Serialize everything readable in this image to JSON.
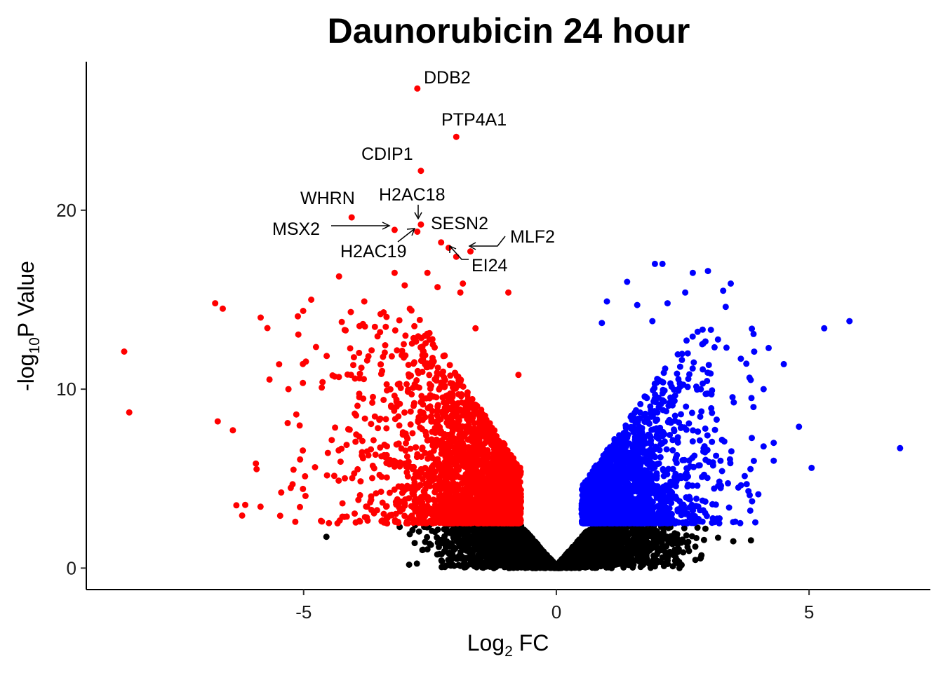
{
  "chart_data": {
    "type": "scatter",
    "title": "Daunorubicin 24 hour",
    "xlabel": {
      "main": "Log",
      "sub": "2",
      "tail": " FC"
    },
    "ylabel": {
      "main": "-log",
      "sub": "10",
      "tail": "P Value"
    },
    "xlim": [
      -9.3,
      7.4
    ],
    "ylim": [
      -1.2,
      28.3
    ],
    "x_ticks": [
      -5,
      0,
      5
    ],
    "y_ticks": [
      0,
      10,
      20
    ],
    "grid": false,
    "legend": "none",
    "colors": {
      "down": "#ff0000",
      "up": "#0000ff",
      "ns": "#000000"
    },
    "significance_threshold": 2.5,
    "point_generation": {
      "down_count": 2400,
      "up_count": 2000,
      "ns_count": 3200,
      "seed": 7
    },
    "highlight_points": {
      "down": [
        [
          -2.75,
          26.8
        ],
        [
          -1.98,
          24.1
        ],
        [
          -2.68,
          22.2
        ],
        [
          -4.05,
          19.6
        ],
        [
          -2.68,
          19.2
        ],
        [
          -3.2,
          18.9
        ],
        [
          -2.75,
          18.8
        ],
        [
          -2.28,
          18.2
        ],
        [
          -2.13,
          17.9
        ],
        [
          -1.7,
          17.7
        ],
        [
          -1.98,
          17.4
        ],
        [
          -8.55,
          12.1
        ],
        [
          -8.45,
          8.7
        ],
        [
          -6.75,
          14.8
        ],
        [
          -6.6,
          14.5
        ],
        [
          -6.7,
          8.2
        ],
        [
          -6.4,
          7.7
        ],
        [
          -5.85,
          14.0
        ],
        [
          -5.3,
          10.0
        ],
        [
          -4.85,
          15.0
        ],
        [
          -4.3,
          16.3
        ],
        [
          -3.2,
          16.5
        ],
        [
          -3.0,
          15.8
        ],
        [
          -2.55,
          16.5
        ],
        [
          -2.35,
          15.7
        ],
        [
          -1.85,
          15.9
        ],
        [
          -1.9,
          15.4
        ],
        [
          -0.95,
          15.4
        ],
        [
          -1.6,
          13.4
        ],
        [
          -0.75,
          10.8
        ],
        [
          -3.8,
          14.9
        ],
        [
          -5.2,
          5.5
        ]
      ],
      "up": [
        [
          1.0,
          14.9
        ],
        [
          1.4,
          16.0
        ],
        [
          1.9,
          13.8
        ],
        [
          1.95,
          17.0
        ],
        [
          2.1,
          17.0
        ],
        [
          2.2,
          14.8
        ],
        [
          2.55,
          15.4
        ],
        [
          2.7,
          16.5
        ],
        [
          3.0,
          16.6
        ],
        [
          3.45,
          15.9
        ],
        [
          3.3,
          15.5
        ],
        [
          3.35,
          14.6
        ],
        [
          4.2,
          12.3
        ],
        [
          4.5,
          11.4
        ],
        [
          5.3,
          13.4
        ],
        [
          5.8,
          13.8
        ],
        [
          6.8,
          6.7
        ],
        [
          5.05,
          5.6
        ],
        [
          4.3,
          6.0
        ],
        [
          3.6,
          4.5
        ],
        [
          3.8,
          4.3
        ],
        [
          4.1,
          6.8
        ],
        [
          4.3,
          7.0
        ],
        [
          4.8,
          7.9
        ],
        [
          3.9,
          9.0
        ],
        [
          3.65,
          11.7
        ],
        [
          4.1,
          10.0
        ],
        [
          0.9,
          13.7
        ],
        [
          1.6,
          14.7
        ],
        [
          2.6,
          12.0
        ]
      ],
      "ns": [
        [
          -4.55,
          1.75
        ],
        [
          3.85,
          1.55
        ],
        [
          3.5,
          1.5
        ],
        [
          -2.55,
          1.05
        ],
        [
          -2.3,
          1.4
        ],
        [
          2.75,
          1.2
        ],
        [
          3.2,
          1.7
        ],
        [
          -3.1,
          2.3
        ],
        [
          2.95,
          2.2
        ],
        [
          -2.9,
          1.9
        ],
        [
          2.4,
          0.9
        ],
        [
          -2.0,
          1.1
        ],
        [
          2.1,
          0.6
        ],
        [
          -1.6,
          0.5
        ]
      ]
    },
    "labeled_genes": [
      {
        "name": "DDB2",
        "x": -2.75,
        "y": 26.8
      },
      {
        "name": "PTP4A1",
        "x": -1.98,
        "y": 24.1
      },
      {
        "name": "CDIP1",
        "x": -2.68,
        "y": 22.2
      },
      {
        "name": "WHRN",
        "x": -4.05,
        "y": 19.6
      },
      {
        "name": "H2AC18",
        "x": -2.68,
        "y": 19.2
      },
      {
        "name": "MSX2",
        "x": -3.2,
        "y": 18.9
      },
      {
        "name": "H2AC19",
        "x": -2.75,
        "y": 18.8
      },
      {
        "name": "SESN2",
        "x": -2.28,
        "y": 18.2
      },
      {
        "name": "MLF2",
        "x": -1.7,
        "y": 17.7
      },
      {
        "name": "EI24",
        "x": -1.98,
        "y": 17.4
      }
    ]
  }
}
